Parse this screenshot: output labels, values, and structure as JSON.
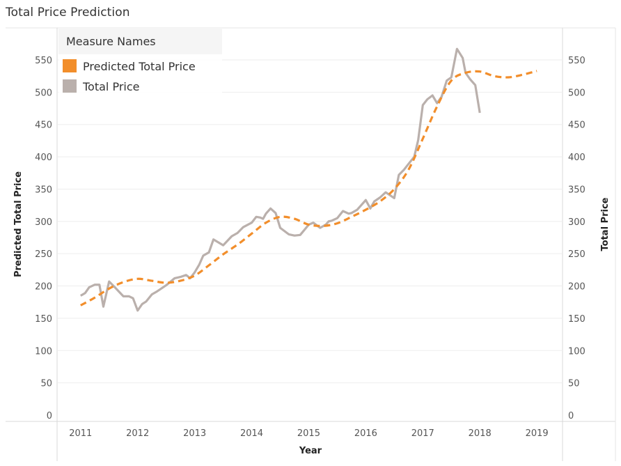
{
  "chart_title": "Total Price Prediction",
  "chart_data": {
    "type": "line",
    "title": "Total Price Prediction",
    "xlabel": "Year",
    "ylabel_left": "Predicted Total Price",
    "ylabel_right": "Total Price",
    "x_ticks": [
      "2011",
      "2012",
      "2013",
      "2014",
      "2015",
      "2016",
      "2017",
      "2018",
      "2019"
    ],
    "y_ticks": [
      "0",
      "50",
      "100",
      "150",
      "200",
      "250",
      "300",
      "350",
      "400",
      "450",
      "500",
      "550"
    ],
    "ylim": [
      0,
      585
    ],
    "xlim": [
      2010.6,
      2019.45
    ],
    "grid": true,
    "legend": {
      "title": "Measure Names",
      "placement": "top-left",
      "entries": [
        {
          "label": "Predicted Total Price",
          "color": "#f28e2b"
        },
        {
          "label": "Total Price",
          "color": "#bab0ac"
        }
      ]
    },
    "series": [
      {
        "name": "Predicted Total Price",
        "style": "dashed",
        "color": "#f28e2b",
        "x": [
          2011.0,
          2011.25,
          2011.5,
          2011.75,
          2012.0,
          2012.25,
          2012.5,
          2012.75,
          2013.0,
          2013.25,
          2013.5,
          2013.75,
          2014.0,
          2014.25,
          2014.5,
          2014.75,
          2015.0,
          2015.25,
          2015.5,
          2015.75,
          2016.0,
          2016.25,
          2016.5,
          2016.75,
          2017.0,
          2017.25,
          2017.5,
          2017.75,
          2018.0,
          2018.25,
          2018.5,
          2018.75,
          2019.0
        ],
        "y": [
          170,
          182,
          196,
          206,
          211,
          208,
          205,
          208,
          216,
          232,
          249,
          264,
          281,
          298,
          307,
          304,
          295,
          293,
          297,
          307,
          318,
          331,
          350,
          380,
          428,
          478,
          518,
          530,
          532,
          525,
          523,
          527,
          533
        ]
      },
      {
        "name": "Total Price",
        "style": "solid",
        "color": "#bab0ac",
        "x": [
          2011.0,
          2011.08,
          2011.15,
          2011.25,
          2011.33,
          2011.4,
          2011.5,
          2011.6,
          2011.75,
          2011.85,
          2011.92,
          2012.0,
          2012.08,
          2012.15,
          2012.25,
          2012.33,
          2012.5,
          2012.65,
          2012.75,
          2012.85,
          2012.92,
          2013.0,
          2013.08,
          2013.15,
          2013.25,
          2013.33,
          2013.5,
          2013.65,
          2013.75,
          2013.85,
          2014.0,
          2014.08,
          2014.15,
          2014.2,
          2014.25,
          2014.33,
          2014.42,
          2014.5,
          2014.65,
          2014.75,
          2014.85,
          2015.0,
          2015.08,
          2015.2,
          2015.3,
          2015.35,
          2015.4,
          2015.5,
          2015.6,
          2015.7,
          2015.75,
          2015.85,
          2016.0,
          2016.08,
          2016.15,
          2016.25,
          2016.35,
          2016.5,
          2016.58,
          2016.67,
          2016.75,
          2016.85,
          2016.92,
          2017.0,
          2017.08,
          2017.17,
          2017.25,
          2017.33,
          2017.42,
          2017.5,
          2017.6,
          2017.7,
          2017.75,
          2017.83,
          2017.92,
          2018.0
        ],
        "y": [
          185,
          189,
          198,
          202,
          202,
          168,
          207,
          198,
          184,
          184,
          181,
          162,
          172,
          176,
          187,
          191,
          201,
          212,
          214,
          217,
          212,
          221,
          233,
          247,
          252,
          272,
          263,
          277,
          282,
          291,
          298,
          307,
          306,
          304,
          312,
          320,
          313,
          290,
          280,
          278,
          279,
          295,
          298,
          290,
          295,
          300,
          301,
          305,
          316,
          312,
          313,
          318,
          333,
          320,
          331,
          337,
          345,
          336,
          372,
          380,
          389,
          400,
          426,
          480,
          489,
          495,
          483,
          493,
          518,
          523,
          567,
          553,
          530,
          520,
          511,
          468
        ]
      }
    ]
  }
}
